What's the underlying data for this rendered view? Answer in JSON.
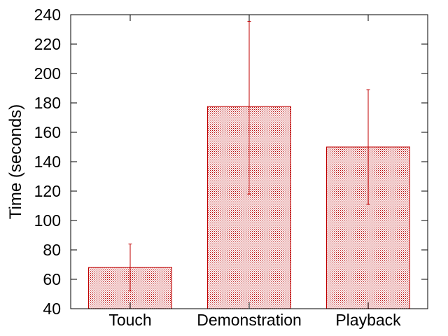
{
  "chart_data": {
    "type": "bar",
    "title": "",
    "xlabel": "",
    "ylabel": "Time (seconds)",
    "ylim": [
      40,
      240
    ],
    "yticks": [
      40,
      60,
      80,
      100,
      120,
      140,
      160,
      180,
      200,
      220,
      240
    ],
    "categories": [
      "Touch",
      "Demonstration",
      "Playback"
    ],
    "values": [
      68,
      177.5,
      150
    ],
    "error_low": [
      52,
      118,
      111
    ],
    "error_high": [
      84,
      235.5,
      189
    ],
    "grid": false,
    "legend": "none",
    "colors": {
      "bar_fill": "#c8797f",
      "bar_stroke": "#c00000",
      "error_bar": "#c00000",
      "axis": "#000000"
    }
  }
}
